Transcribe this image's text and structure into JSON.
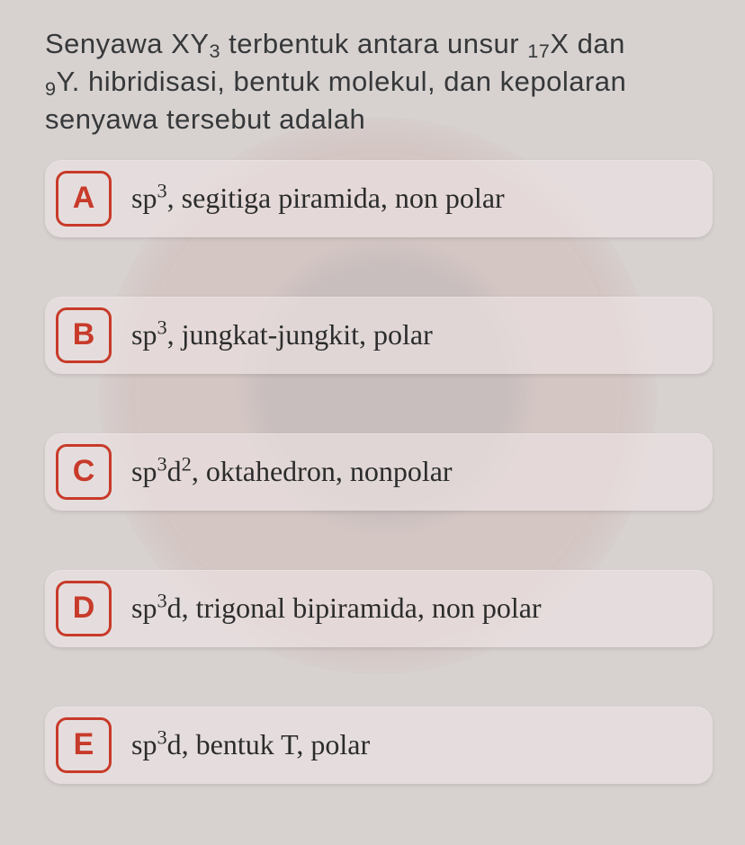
{
  "question": {
    "line1_pre": "Senyawa XY",
    "line1_sub1": "3",
    "line1_mid": " terbentuk antara unsur ",
    "line1_sub2": "17",
    "line1_post": "X dan",
    "line2_sub": "9",
    "line2": "Y. hibridisasi, bentuk molekul, dan kepolaran",
    "line3": "senyawa tersebut adalah"
  },
  "options": {
    "a": {
      "key": "A",
      "prefix": "sp",
      "sup": "3",
      "suffix": ", segitiga piramida, non polar"
    },
    "b": {
      "key": "B",
      "prefix": "sp",
      "sup": "3",
      "suffix": ", jungkat-jungkit, polar"
    },
    "c": {
      "key": "C",
      "prefix": "sp",
      "sup": "3",
      "mid": "d",
      "sup2": "2",
      "suffix": ", oktahedron, nonpolar"
    },
    "d": {
      "key": "D",
      "prefix": "sp",
      "sup": "3",
      "mid": "d",
      "suffix": ", trigonal bipiramida, non polar"
    },
    "e": {
      "key": "E",
      "prefix": "sp",
      "sup": "3",
      "mid": "d",
      "suffix": ", bentuk T, polar"
    }
  },
  "colors": {
    "accent": "#c83a2a",
    "text": "#2c2c2c",
    "question_text": "#36383a",
    "page_bg": "#d7d2d0",
    "card_bg": "rgba(236,228,228,0.65)"
  }
}
